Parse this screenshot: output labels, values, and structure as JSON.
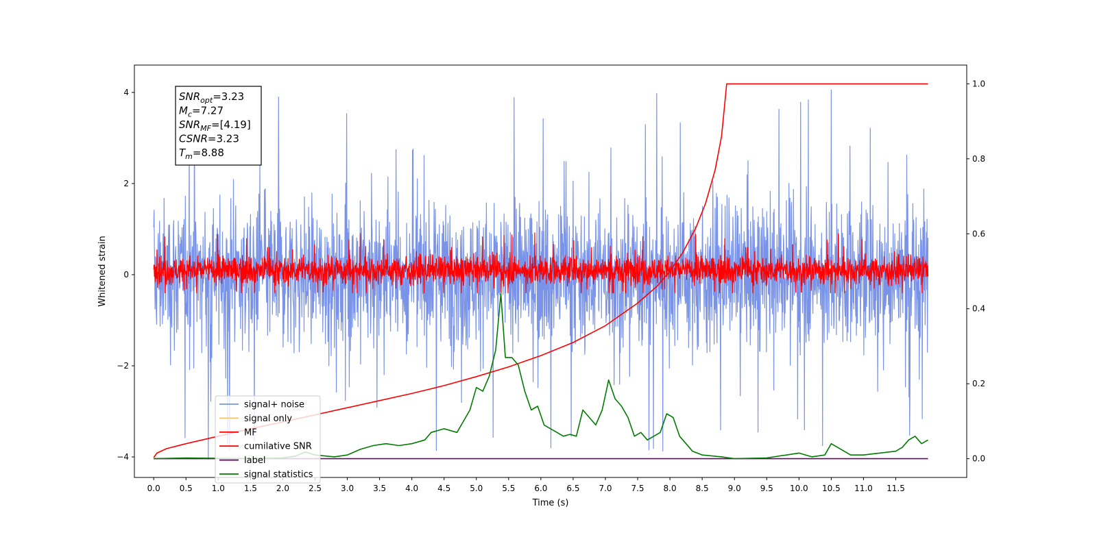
{
  "chart_data": {
    "type": "line",
    "xlabel": "Time (s)",
    "ylabel": "Whitened strain",
    "xlim": [
      -0.3,
      12.6
    ],
    "ylim": [
      -4.45,
      4.6
    ],
    "y2lim": [
      -0.05,
      1.05
    ],
    "x_ticks": [
      0.0,
      0.5,
      1.0,
      1.5,
      2.0,
      2.5,
      3.0,
      3.5,
      4.0,
      4.5,
      5.0,
      5.5,
      6.0,
      6.5,
      7.0,
      7.5,
      8.0,
      8.5,
      9.0,
      9.5,
      10.0,
      10.5,
      11.0,
      11.5
    ],
    "x_tick_labels": [
      "0.0",
      "0.5",
      "1.0",
      "1.5",
      "2.0",
      "2.5",
      "3.0",
      "3.5",
      "4.0",
      "4.5",
      "5.0",
      "5.5",
      "6.0",
      "6.5",
      "7.0",
      "7.5",
      "8.0",
      "8.5",
      "9.0",
      "9.5",
      "10.0",
      "10.5",
      "11.0",
      "11.5"
    ],
    "y_ticks": [
      -4,
      -2,
      0,
      2,
      4
    ],
    "y_tick_labels": [
      "−4",
      "−2",
      "0",
      "2",
      "4"
    ],
    "y2_ticks": [
      0.0,
      0.2,
      0.4,
      0.6,
      0.8,
      1.0
    ],
    "y2_tick_labels": [
      "0.0",
      "0.2",
      "0.4",
      "0.6",
      "0.8",
      "1.0"
    ],
    "grid": false,
    "legend_position": "lower-left",
    "textbox": {
      "lines": [
        {
          "base": "SNR",
          "sub": "opt",
          "rest": "=3.23"
        },
        {
          "base": "M",
          "sub": "c",
          "rest": "=7.27"
        },
        {
          "base": "SNR",
          "sub": "MF",
          "rest": "=[4.19]"
        },
        {
          "base": "CSNR",
          "sub": "",
          "rest": "=3.23"
        },
        {
          "base": "T",
          "sub": "m",
          "rest": "=8.88"
        }
      ]
    },
    "series": [
      {
        "name": "signal+ noise",
        "color": "#7893e8",
        "axis": "left",
        "kind": "noise",
        "t_start": 0.0,
        "t_end": 12.0,
        "envelope_upper": 2.0,
        "envelope_lower": -2.0,
        "max": 4.2,
        "min": -4.05
      },
      {
        "name": "signal only",
        "color": "#f5c46a",
        "axis": "left",
        "kind": "hidden"
      },
      {
        "name": "MF",
        "color": "#ff0000",
        "axis": "left",
        "kind": "noise",
        "t_start": 0.0,
        "t_end": 12.0,
        "envelope_upper": 0.5,
        "envelope_lower": -0.3,
        "max": 0.95,
        "min": -0.4
      },
      {
        "name": "cumilative SNR",
        "color": "#ff0000",
        "axis": "right",
        "x": [
          0.0,
          0.05,
          0.2,
          0.5,
          1.0,
          1.5,
          2.0,
          2.5,
          3.0,
          3.5,
          4.0,
          4.5,
          5.0,
          5.5,
          6.0,
          6.5,
          7.0,
          7.5,
          7.8,
          8.0,
          8.2,
          8.4,
          8.55,
          8.7,
          8.8,
          8.88,
          9.0,
          12.0
        ],
        "y": [
          0.003,
          0.015,
          0.027,
          0.04,
          0.06,
          0.08,
          0.098,
          0.117,
          0.136,
          0.155,
          0.174,
          0.195,
          0.219,
          0.245,
          0.275,
          0.31,
          0.355,
          0.415,
          0.46,
          0.5,
          0.55,
          0.615,
          0.68,
          0.77,
          0.86,
          1.0,
          1.0,
          1.0
        ]
      },
      {
        "name": "label",
        "color": "#6a006a",
        "axis": "right",
        "x": [
          0.0,
          12.0
        ],
        "y": [
          0.0,
          0.0
        ]
      },
      {
        "name": "signal statistics",
        "color": "#007a00",
        "axis": "right",
        "x": [
          0.0,
          0.5,
          1.0,
          1.5,
          2.0,
          2.2,
          2.35,
          2.5,
          2.8,
          3.0,
          3.2,
          3.4,
          3.6,
          3.8,
          4.0,
          4.2,
          4.3,
          4.4,
          4.5,
          4.7,
          4.8,
          4.9,
          5.0,
          5.1,
          5.2,
          5.3,
          5.38,
          5.45,
          5.55,
          5.65,
          5.75,
          5.85,
          5.95,
          6.05,
          6.15,
          6.25,
          6.35,
          6.45,
          6.55,
          6.65,
          6.75,
          6.85,
          6.95,
          7.05,
          7.15,
          7.25,
          7.35,
          7.45,
          7.55,
          7.65,
          7.75,
          7.85,
          7.95,
          8.05,
          8.15,
          8.25,
          8.35,
          8.5,
          8.8,
          9.0,
          9.5,
          10.0,
          10.2,
          10.4,
          10.5,
          10.6,
          10.7,
          10.8,
          11.0,
          11.5,
          11.6,
          11.7,
          11.8,
          11.9,
          12.0
        ],
        "y": [
          0.0,
          0.002,
          0.001,
          0.0,
          0.002,
          0.007,
          0.018,
          0.01,
          0.005,
          0.01,
          0.025,
          0.035,
          0.04,
          0.035,
          0.04,
          0.05,
          0.07,
          0.075,
          0.08,
          0.07,
          0.1,
          0.13,
          0.19,
          0.18,
          0.22,
          0.29,
          0.44,
          0.27,
          0.27,
          0.25,
          0.18,
          0.13,
          0.14,
          0.09,
          0.08,
          0.07,
          0.06,
          0.065,
          0.06,
          0.13,
          0.11,
          0.09,
          0.13,
          0.21,
          0.16,
          0.14,
          0.11,
          0.06,
          0.07,
          0.05,
          0.06,
          0.07,
          0.12,
          0.11,
          0.06,
          0.04,
          0.02,
          0.01,
          0.005,
          0.0,
          0.002,
          0.015,
          0.005,
          0.01,
          0.04,
          0.03,
          0.02,
          0.01,
          0.01,
          0.02,
          0.03,
          0.05,
          0.06,
          0.04,
          0.05
        ]
      }
    ]
  }
}
